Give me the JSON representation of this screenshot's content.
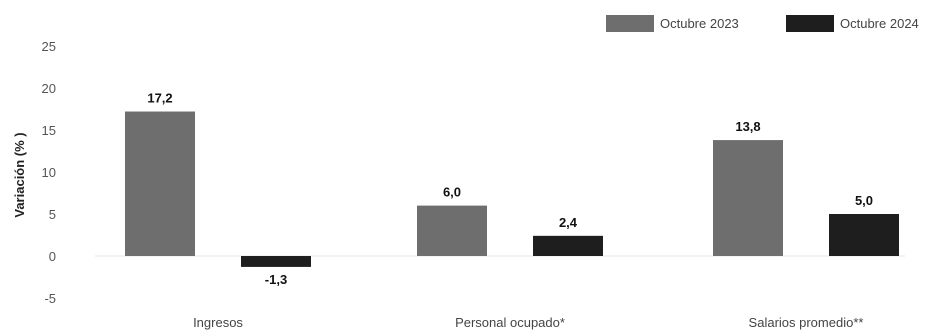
{
  "chart_data": {
    "type": "bar",
    "categories": [
      "Ingresos",
      "Personal ocupado*",
      "Salarios promedio**"
    ],
    "series": [
      {
        "name": "Octubre 2023",
        "values": [
          17.2,
          6.0,
          13.8
        ],
        "labels": [
          "17,2",
          "6,0",
          "13,8"
        ],
        "color": "#6e6e6e"
      },
      {
        "name": "Octubre 2024",
        "values": [
          -1.3,
          2.4,
          5.0
        ],
        "labels": [
          "-1,3",
          "2,4",
          "5,0"
        ],
        "color": "#1e1e1e"
      }
    ],
    "ylabel": "Variación (% )",
    "xlabel": "",
    "title": "",
    "ylim": [
      -5,
      25
    ],
    "yticks": [
      25,
      20,
      15,
      10,
      5,
      0,
      -5
    ],
    "grid": false,
    "legend": "top-right"
  }
}
